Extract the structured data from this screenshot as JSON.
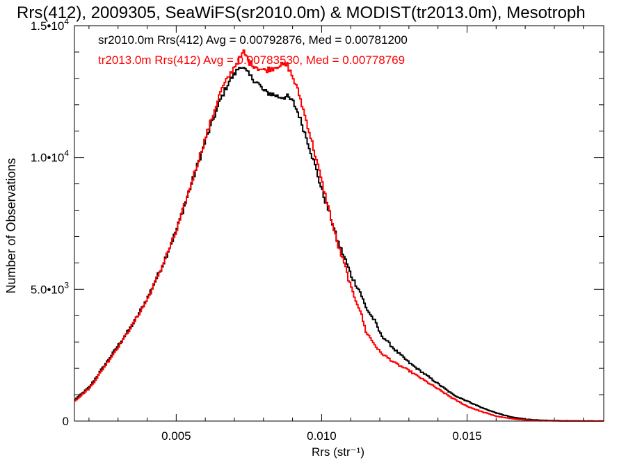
{
  "chart_data": {
    "type": "line",
    "title": "Rrs(412), 2009305, SeaWiFS(sr2010.0m) & MODIST(tr2013.0m), Mesotroph",
    "xlabel": "Rrs (str⁻¹)",
    "ylabel": "Number of Observations",
    "xlim": [
      0.0015,
      0.0197
    ],
    "ylim": [
      0,
      15000
    ],
    "xticks": [
      {
        "value": 0.005,
        "label": "0.005"
      },
      {
        "value": 0.01,
        "label": "0.010"
      },
      {
        "value": 0.015,
        "label": "0.015"
      }
    ],
    "yticks": [
      {
        "value": 0,
        "label": "0",
        "exp": ""
      },
      {
        "value": 5000,
        "label": "5.0•10",
        "exp": "3"
      },
      {
        "value": 10000,
        "label": "1.0•10",
        "exp": "4"
      },
      {
        "value": 15000,
        "label": "1.5•10",
        "exp": "4"
      }
    ],
    "grid": false,
    "legend_position": "top-left",
    "series": [
      {
        "label": "sr2010.0m Rrs(412) Avg = 0.00792876, Med = 0.00781200",
        "color": "#000000",
        "x": [
          0.0015,
          0.002,
          0.0025,
          0.003,
          0.0035,
          0.004,
          0.0045,
          0.005,
          0.0055,
          0.006,
          0.0065,
          0.0068,
          0.007,
          0.0072,
          0.0075,
          0.0078,
          0.008,
          0.0083,
          0.0085,
          0.0088,
          0.009,
          0.0092,
          0.0095,
          0.0098,
          0.01,
          0.0103,
          0.0105,
          0.0108,
          0.011,
          0.0113,
          0.0115,
          0.0118,
          0.012,
          0.0125,
          0.013,
          0.0135,
          0.014,
          0.0145,
          0.015,
          0.0155,
          0.016,
          0.0165,
          0.017,
          0.0175,
          0.018,
          0.0185,
          0.019,
          0.0197
        ],
        "y": [
          820,
          1300,
          2100,
          2900,
          3700,
          4700,
          5900,
          7300,
          9000,
          10700,
          12200,
          12900,
          13200,
          13500,
          13100,
          12800,
          12500,
          12400,
          12300,
          12300,
          12100,
          11600,
          10600,
          9500,
          8700,
          7700,
          6900,
          6100,
          5500,
          4900,
          4300,
          3800,
          3300,
          2700,
          2200,
          1800,
          1400,
          1000,
          750,
          500,
          300,
          150,
          70,
          30,
          15,
          5,
          2,
          0
        ]
      },
      {
        "label": "tr2013.0m Rrs(412) Avg = 0.00783530, Med = 0.00778769",
        "color": "#ff0000",
        "x": [
          0.0015,
          0.002,
          0.0025,
          0.003,
          0.0035,
          0.004,
          0.0045,
          0.005,
          0.0055,
          0.006,
          0.0065,
          0.0068,
          0.007,
          0.0072,
          0.0073,
          0.0075,
          0.0078,
          0.008,
          0.0083,
          0.0085,
          0.0088,
          0.009,
          0.0092,
          0.0095,
          0.0098,
          0.01,
          0.0103,
          0.0105,
          0.0108,
          0.011,
          0.0113,
          0.0115,
          0.0118,
          0.012,
          0.0125,
          0.013,
          0.0135,
          0.014,
          0.0145,
          0.015,
          0.0155,
          0.016,
          0.0165,
          0.017,
          0.0175,
          0.018,
          0.0185,
          0.019,
          0.0197
        ],
        "y": [
          780,
          1250,
          2050,
          2850,
          3700,
          4650,
          5900,
          7250,
          9050,
          10800,
          12500,
          13100,
          13500,
          13800,
          14000,
          13600,
          13400,
          13300,
          13400,
          13500,
          13500,
          13000,
          12400,
          11200,
          9900,
          9000,
          7700,
          6800,
          5800,
          5000,
          4200,
          3400,
          2900,
          2600,
          2200,
          1900,
          1550,
          1200,
          850,
          550,
          350,
          180,
          90,
          40,
          15,
          5,
          2,
          1,
          0
        ]
      }
    ]
  }
}
